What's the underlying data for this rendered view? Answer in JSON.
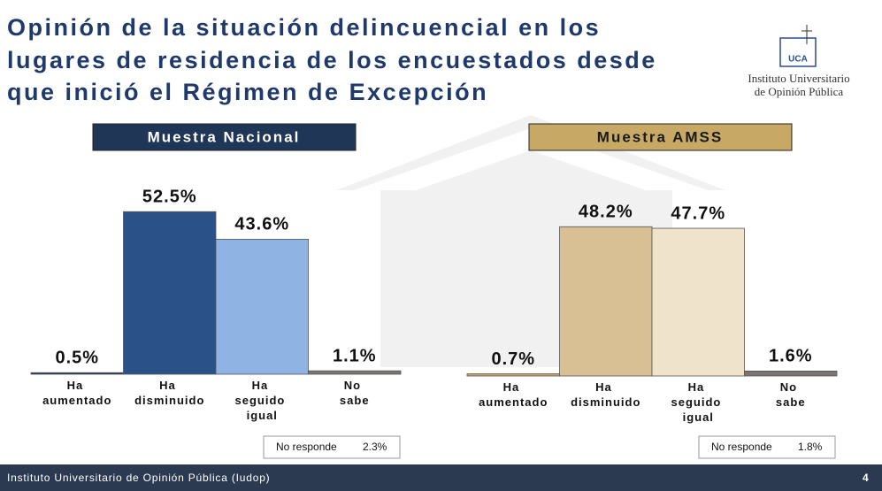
{
  "header": {
    "title_lines": [
      "Opinión de la situación delincuencial en los",
      "lugares de residencia de los encuestados desde",
      "que inició el Régimen de Excepción"
    ],
    "logo_mark": "UCA",
    "logo_lines": [
      "Instituto Universitario",
      "de Opinión Pública"
    ]
  },
  "footer": {
    "text": "Instituto Universitario de Opinión Pública (Iudop)",
    "page": "4"
  },
  "chart_data": [
    {
      "type": "bar",
      "subtitle": "Muestra Nacional",
      "subtitle_color": "#1f3657",
      "subtitle_text_color": "#ffffff",
      "categories": [
        "Ha aumentado",
        "Ha disminuido",
        "Ha seguido igual",
        "No sabe"
      ],
      "values": [
        0.5,
        52.5,
        43.6,
        1.1
      ],
      "value_labels": [
        "0.5%",
        "52.5%",
        "43.6%",
        "1.1%"
      ],
      "colors": [
        "#1f3657",
        "#2b5288",
        "#8fb4e3",
        "#7a7474"
      ],
      "note": {
        "label": "No responde",
        "value": 2.3,
        "value_label": "2.3%"
      }
    },
    {
      "type": "bar",
      "subtitle": "Muestra AMSS",
      "subtitle_color": "#c8a865",
      "subtitle_text_color": "#1a1a1a",
      "categories": [
        "Ha aumentado",
        "Ha disminuido",
        "Ha seguido igual",
        "No sabe"
      ],
      "values": [
        0.7,
        48.2,
        47.7,
        1.6
      ],
      "value_labels": [
        "0.7%",
        "48.2%",
        "47.7%",
        "1.6%"
      ],
      "colors": [
        "#c9a664",
        "#d8bf94",
        "#efe3cb",
        "#7a7474"
      ],
      "note": {
        "label": "No responde",
        "value": 1.8,
        "value_label": "1.8%"
      }
    }
  ]
}
